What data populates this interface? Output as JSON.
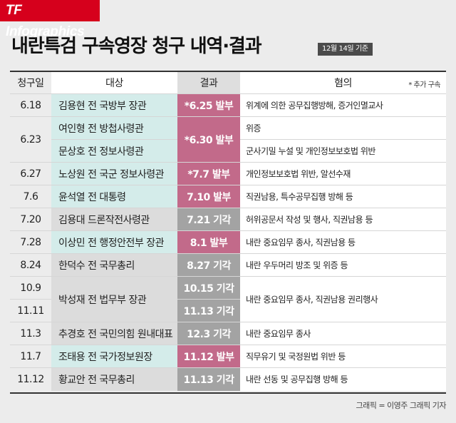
{
  "brand": "TF Infographics",
  "title": "내란특검 구속영장 청구 내역·결과",
  "date_badge": "12월 14일 기준",
  "headers": {
    "date": "청구일",
    "target": "대상",
    "result": "결과",
    "reason": "혐의",
    "note": "* 추가 구속"
  },
  "rows": [
    {
      "date": "6.18",
      "target": "김용현 전 국방부 장관",
      "result": "*6.25 발부",
      "reason": "위계에 의한 공무집행방해, 증거인멸교사"
    },
    {
      "date": "6.23",
      "target": "여인형 전 방첩사령관",
      "result": "*6.30 발부",
      "reason": "위증"
    },
    {
      "target": "문상호 전 정보사령관",
      "reason": "군사기밀 누설 및 개인정보보호법 위반"
    },
    {
      "date": "6.27",
      "target": "노상원 전 국군 정보사령관",
      "result": "*7.7 발부",
      "reason": "개인정보보호법 위반, 알선수재"
    },
    {
      "date": "7.6",
      "target": "윤석열 전 대통령",
      "result": "7.10 발부",
      "reason": "직권남용, 특수공무집행 방해 등"
    },
    {
      "date": "7.20",
      "target": "김용대 드론작전사령관",
      "result": "7.21 기각",
      "reason": "허위공문서 작성 및 행사, 직권남용 등"
    },
    {
      "date": "7.28",
      "target": "이상민 전 행정안전부 장관",
      "result": "8.1 발부",
      "reason": "내란 중요임무 종사, 직권남용 등"
    },
    {
      "date": "8.24",
      "target": "한덕수 전 국무총리",
      "result": "8.27 기각",
      "reason": "내란 우두머리 방조 및 위증 등"
    },
    {
      "date": "10.9",
      "target": "박성재 전 법무부 장관",
      "result": "10.15 기각",
      "reason": "내란 중요임무 종사, 직권남용 권리행사"
    },
    {
      "date": "11.11",
      "result": "11.13 기각"
    },
    {
      "date": "11.3",
      "target": "추경호 전 국민의힘 원내대표",
      "result": "12.3 기각",
      "reason": "내란 중요임무 종사"
    },
    {
      "date": "11.7",
      "target": "조태용 전 국가정보원장",
      "result": "11.12 발부",
      "reason": "직무유기 및 국정원법 위반 등"
    },
    {
      "date": "11.12",
      "target": "황교안 전 국무총리",
      "result": "11.13 기각",
      "reason": "내란 선동 및 공무집행 방해 등"
    }
  ],
  "credit": "그래픽 = 이영주 그래픽 기자",
  "colors": {
    "brand_red": "#d6001c",
    "granted_pink": "#c26a8a",
    "rejected_gray": "#a3a3a3",
    "target_mint": "#d4ecea",
    "target_gray": "#dcdcdc"
  }
}
